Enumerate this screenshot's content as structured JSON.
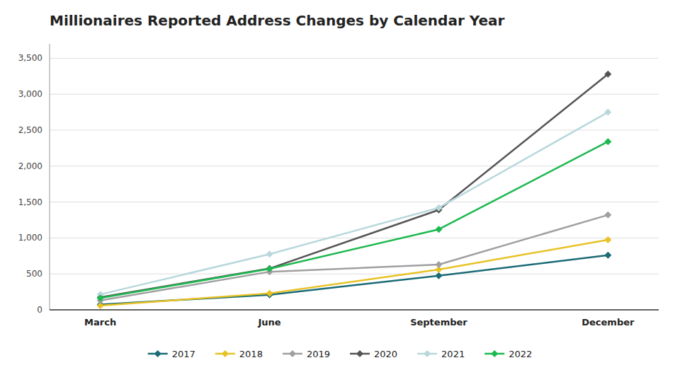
{
  "chart_data": {
    "type": "line",
    "title": "Millionaires Reported Address Changes by Calendar Year",
    "categories": [
      "March",
      "June",
      "September",
      "December"
    ],
    "series": [
      {
        "name": "2017",
        "color": "#1a6b75",
        "values": [
          75,
          210,
          475,
          760
        ]
      },
      {
        "name": "2018",
        "color": "#e8c225",
        "values": [
          60,
          230,
          560,
          975
        ]
      },
      {
        "name": "2019",
        "color": "#a0a0a0",
        "values": [
          130,
          530,
          630,
          1320
        ]
      },
      {
        "name": "2020",
        "color": "#555555",
        "values": [
          175,
          575,
          1390,
          3280
        ]
      },
      {
        "name": "2021",
        "color": "#b8d8dc",
        "values": [
          215,
          775,
          1420,
          2750
        ]
      },
      {
        "name": "2022",
        "color": "#1db850",
        "values": [
          165,
          570,
          1120,
          2340
        ]
      }
    ],
    "ylim": [
      0,
      3700
    ],
    "yticks": [
      0,
      500,
      {
        "value": 1000,
        "label": "1,000"
      },
      {
        "value": 1500,
        "label": "1,500"
      },
      {
        "value": 2000,
        "label": "2,000"
      },
      {
        "value": 2500,
        "label": "2,500"
      },
      {
        "value": 3000,
        "label": "3,000"
      },
      {
        "value": 3500,
        "label": "3,500"
      }
    ],
    "grid": true,
    "legend": "bottom",
    "marker": "diamond"
  }
}
